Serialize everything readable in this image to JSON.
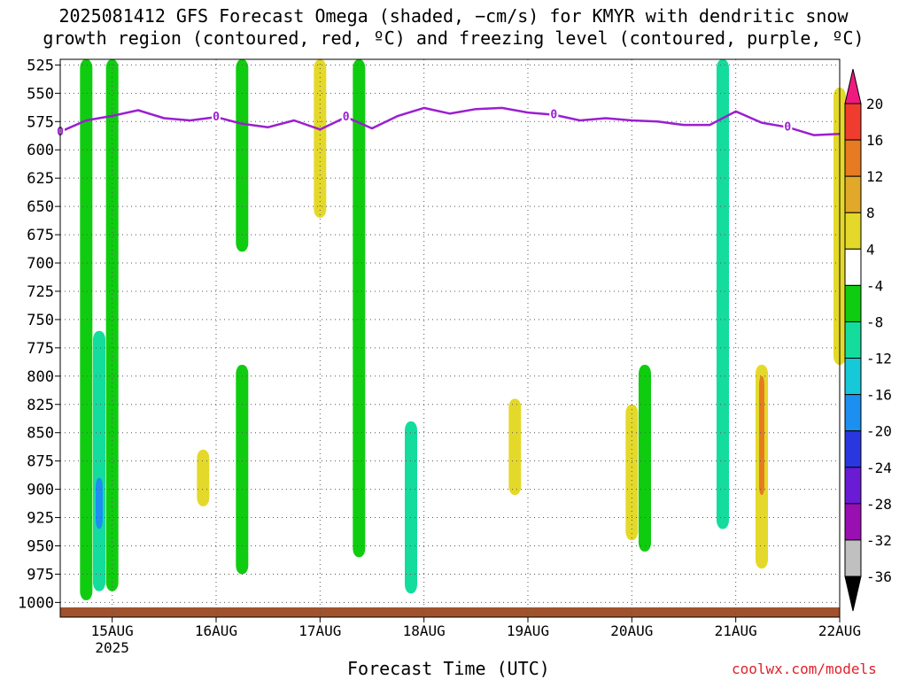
{
  "header": {
    "title_line1": "2025081412 GFS Forecast Omega (shaded, −cm/s) for KMYR with dendritic snow",
    "title_line2": "growth region (contoured, red, ºC) and freezing level (contoured, purple, ºC)"
  },
  "footer": {
    "xlabel": "Forecast Time (UTC)",
    "credit": "coolwx.com/models"
  },
  "colors": {
    "freezing_level": "#9a1fd1",
    "ground": "#a0522d",
    "omega_scale": [
      "#c0c0c0",
      "#9a0fb2",
      "#6a1bd4",
      "#2a36e0",
      "#1c8ff0",
      "#17c9d8",
      "#14dc9c",
      "#10cc10",
      "#ffffff",
      "#e4d92a",
      "#e2a82a",
      "#e67b22",
      "#f03c2e",
      "#f0197f"
    ]
  },
  "chart_data": {
    "type": "heatmap",
    "title": "2025081412 GFS Forecast Omega (shaded, −cm/s) for KMYR with dendritic snow growth region (contoured, red, ºC) and freezing level (contoured, purple, ºC)",
    "xlabel": "Forecast Time (UTC)",
    "ylabel": "",
    "x_ticks": [
      "15AUG",
      "16AUG",
      "17AUG",
      "18AUG",
      "19AUG",
      "20AUG",
      "21AUG",
      "22AUG"
    ],
    "x_tick_sublabel": "2025",
    "xlim": [
      "2025-08-14T12",
      "2025-08-22T00"
    ],
    "y_ticks": [
      525,
      550,
      575,
      600,
      625,
      650,
      675,
      700,
      725,
      750,
      775,
      800,
      825,
      850,
      875,
      900,
      925,
      950,
      975,
      1000
    ],
    "y_unit": "hPa",
    "ylim": [
      1013,
      520
    ],
    "colorbar": {
      "labels": [
        20,
        16,
        12,
        8,
        4,
        -4,
        -8,
        -12,
        -16,
        -20,
        -24,
        -28,
        -32,
        -36
      ],
      "unit": "-cm/s"
    },
    "freezing_level": {
      "label": "0",
      "times": [
        "2025-08-14T12",
        "2025-08-14T18",
        "2025-08-15T00",
        "2025-08-15T06",
        "2025-08-15T12",
        "2025-08-15T18",
        "2025-08-16T00",
        "2025-08-16T06",
        "2025-08-16T12",
        "2025-08-16T18",
        "2025-08-17T00",
        "2025-08-17T06",
        "2025-08-17T12",
        "2025-08-17T18",
        "2025-08-18T00",
        "2025-08-18T06",
        "2025-08-18T12",
        "2025-08-18T18",
        "2025-08-19T00",
        "2025-08-19T06",
        "2025-08-19T12",
        "2025-08-19T18",
        "2025-08-20T00",
        "2025-08-20T06",
        "2025-08-20T12",
        "2025-08-20T18",
        "2025-08-21T00",
        "2025-08-21T06",
        "2025-08-21T12",
        "2025-08-21T18",
        "2025-08-22T00"
      ],
      "pressure_hpa": [
        584,
        574,
        570,
        565,
        572,
        574,
        571,
        577,
        580,
        574,
        582,
        571,
        581,
        570,
        563,
        568,
        564,
        563,
        567,
        569,
        574,
        572,
        574,
        575,
        578,
        578,
        566,
        576,
        580,
        587,
        586
      ]
    },
    "omega_regions": [
      {
        "time": "2025-08-14T18",
        "p_top": 520,
        "p_bottom": 998,
        "value": -8
      },
      {
        "time": "2025-08-14T21",
        "p_top": 760,
        "p_bottom": 990,
        "value": -12
      },
      {
        "time": "2025-08-14T21",
        "p_top": 890,
        "p_bottom": 935,
        "value": -20
      },
      {
        "time": "2025-08-15T00",
        "p_top": 520,
        "p_bottom": 990,
        "value": -8
      },
      {
        "time": "2025-08-15T21",
        "p_top": 865,
        "p_bottom": 915,
        "value": 4
      },
      {
        "time": "2025-08-16T06",
        "p_top": 520,
        "p_bottom": 690,
        "value": -8
      },
      {
        "time": "2025-08-16T06",
        "p_top": 790,
        "p_bottom": 975,
        "value": -8
      },
      {
        "time": "2025-08-17T00",
        "p_top": 520,
        "p_bottom": 660,
        "value": 4
      },
      {
        "time": "2025-08-17T09",
        "p_top": 520,
        "p_bottom": 960,
        "value": -8
      },
      {
        "time": "2025-08-17T21",
        "p_top": 840,
        "p_bottom": 992,
        "value": -12
      },
      {
        "time": "2025-08-18T21",
        "p_top": 820,
        "p_bottom": 905,
        "value": 4
      },
      {
        "time": "2025-08-20T00",
        "p_top": 825,
        "p_bottom": 945,
        "value": 4
      },
      {
        "time": "2025-08-20T03",
        "p_top": 790,
        "p_bottom": 955,
        "value": -8
      },
      {
        "time": "2025-08-20T21",
        "p_top": 520,
        "p_bottom": 935,
        "value": -12
      },
      {
        "time": "2025-08-21T06",
        "p_top": 790,
        "p_bottom": 970,
        "value": 4
      },
      {
        "time": "2025-08-21T06",
        "p_top": 800,
        "p_bottom": 905,
        "value": 12
      },
      {
        "time": "2025-08-22T00",
        "p_top": 545,
        "p_bottom": 790,
        "value": 4
      }
    ]
  }
}
